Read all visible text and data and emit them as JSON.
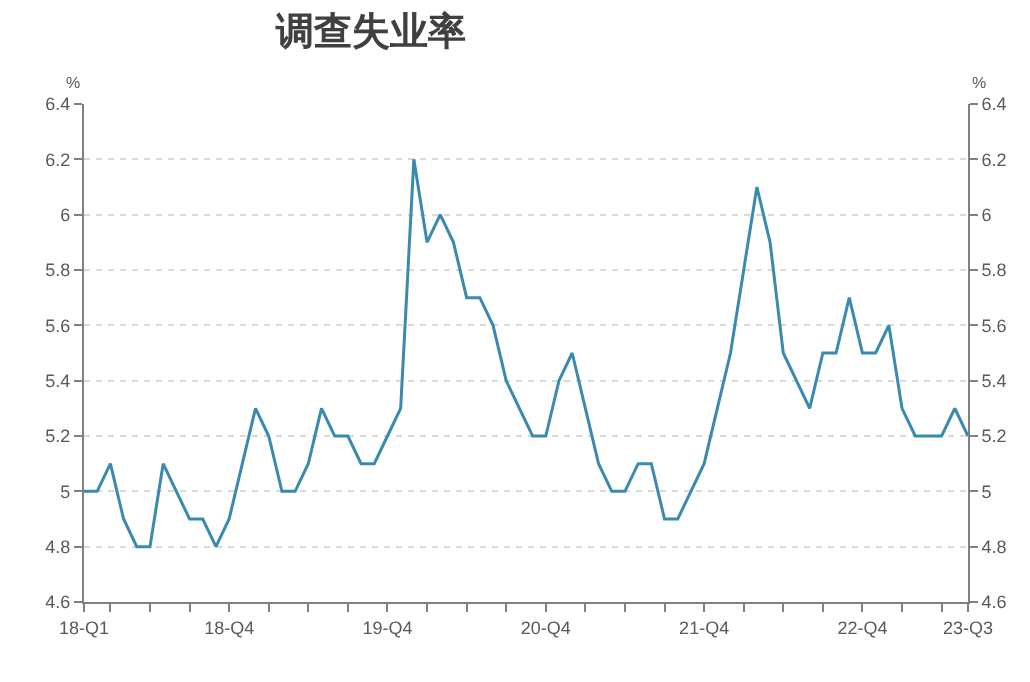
{
  "chart_data": {
    "type": "line",
    "title": "调查失业率",
    "ylabel": "%",
    "y2label": "%",
    "categories": [
      "18-Q1",
      null,
      null,
      null,
      null,
      null,
      null,
      null,
      null,
      null,
      null,
      "18-Q4",
      null,
      null,
      null,
      null,
      null,
      null,
      null,
      null,
      null,
      null,
      null,
      "19-Q4",
      null,
      null,
      null,
      null,
      null,
      null,
      null,
      null,
      null,
      null,
      null,
      "20-Q4",
      null,
      null,
      null,
      null,
      null,
      null,
      null,
      null,
      null,
      null,
      null,
      "21-Q4",
      null,
      null,
      null,
      null,
      null,
      null,
      null,
      null,
      null,
      null,
      null,
      "22-Q4",
      null,
      null,
      null,
      null,
      null,
      null,
      null,
      "23-Q3"
    ],
    "series": [
      {
        "color": "#3a8ab0",
        "values": [
          5.0,
          5.0,
          5.1,
          4.9,
          4.8,
          4.8,
          5.1,
          5.0,
          4.9,
          4.9,
          4.8,
          4.9,
          5.1,
          5.3,
          5.2,
          5.0,
          5.0,
          5.1,
          5.3,
          5.2,
          5.2,
          5.1,
          5.1,
          5.2,
          5.3,
          6.2,
          5.9,
          6.0,
          5.9,
          5.7,
          5.7,
          5.6,
          5.4,
          5.3,
          5.2,
          5.2,
          5.4,
          5.5,
          5.3,
          5.1,
          5.0,
          5.0,
          5.1,
          5.1,
          4.9,
          4.9,
          5.0,
          5.1,
          5.3,
          5.5,
          5.8,
          6.1,
          5.9,
          5.5,
          5.4,
          5.3,
          5.5,
          5.5,
          5.7,
          5.5,
          5.5,
          5.6,
          5.3,
          5.2,
          5.2,
          5.2,
          5.3,
          5.2
        ]
      }
    ],
    "ylim": [
      4.6,
      6.4
    ],
    "yticks": [
      4.6,
      4.8,
      5,
      5.2,
      5.4,
      5.6,
      5.8,
      6,
      6.2,
      6.4
    ],
    "y2lim": [
      4.6,
      6.4
    ],
    "y2ticks": [
      4.6,
      4.8,
      5,
      5.2,
      5.4,
      5.6,
      5.8,
      6,
      6.2,
      6.4
    ],
    "grid": "y",
    "marker": "none",
    "line_style": "solid"
  }
}
